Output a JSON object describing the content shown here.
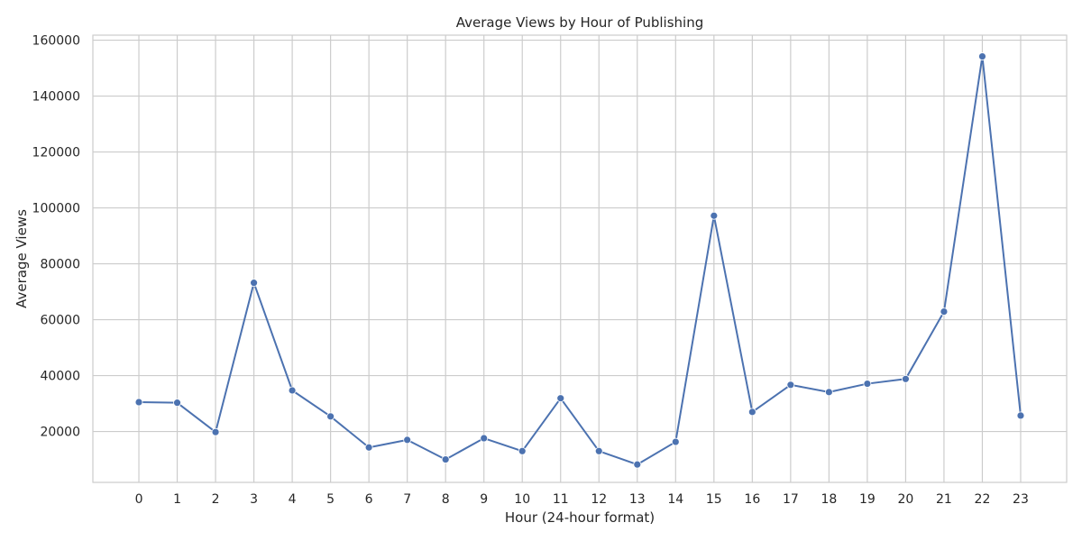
{
  "chart_data": {
    "type": "line",
    "title": "Average Views by Hour of Publishing",
    "xlabel": "Hour (24-hour format)",
    "ylabel": "Average Views",
    "x": [
      0,
      1,
      2,
      3,
      4,
      5,
      6,
      7,
      8,
      9,
      10,
      11,
      12,
      13,
      14,
      15,
      16,
      17,
      18,
      19,
      20,
      21,
      22,
      23
    ],
    "series": [
      {
        "values": [
          30500,
          30300,
          19800,
          73200,
          34700,
          25400,
          14300,
          17000,
          10000,
          17600,
          13000,
          31900,
          13000,
          8200,
          16300,
          97200,
          27000,
          36700,
          34100,
          37100,
          38800,
          62900,
          154200,
          25700
        ]
      }
    ],
    "xlim": [
      -1.2,
      24.2
    ],
    "ylim": [
      1800,
      161800
    ],
    "yticks": [
      20000,
      40000,
      60000,
      80000,
      100000,
      120000,
      140000,
      160000
    ],
    "grid": true,
    "line_color": "#4c72b0",
    "grid_color": "#cccccc",
    "frame_color": "#cccccc"
  }
}
